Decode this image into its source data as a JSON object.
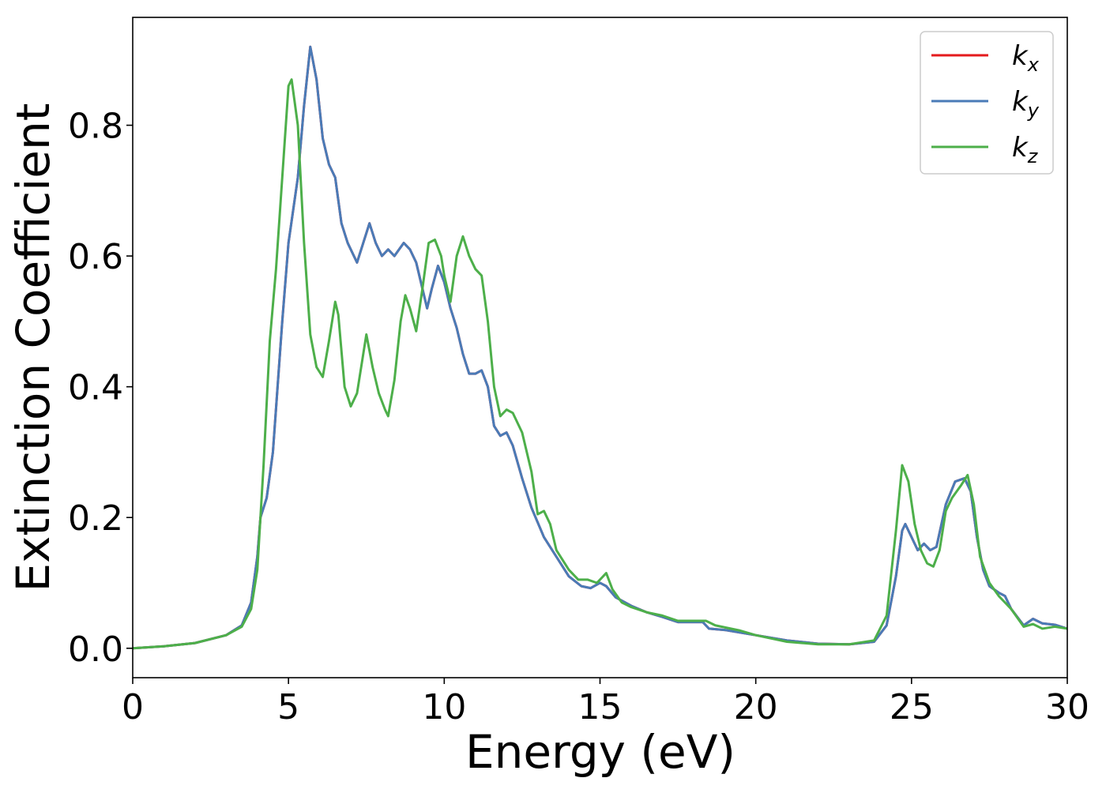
{
  "chart_data": {
    "type": "line",
    "title": "",
    "xlabel": "Energy (eV)",
    "ylabel": "Extinction Coefficient",
    "xlim": [
      0,
      30
    ],
    "ylim": [
      -0.045,
      0.965
    ],
    "xticks": [
      0,
      5,
      10,
      15,
      20,
      25,
      30
    ],
    "xtick_labels": [
      "0",
      "5",
      "10",
      "15",
      "20",
      "25",
      "30"
    ],
    "yticks": [
      0.0,
      0.2,
      0.4,
      0.6,
      0.8
    ],
    "ytick_labels": [
      "0.0",
      "0.2",
      "0.4",
      "0.6",
      "0.8"
    ],
    "grid": false,
    "legend_position": "top-right",
    "series": [
      {
        "name": "k_x",
        "label_main": "k",
        "label_sub": "x",
        "color": "#e41a1c",
        "points": [
          [
            0,
            0.0
          ],
          [
            1,
            0.003
          ],
          [
            2,
            0.008
          ],
          [
            3,
            0.02
          ],
          [
            3.5,
            0.035
          ],
          [
            3.8,
            0.07
          ],
          [
            4.0,
            0.14
          ],
          [
            4.1,
            0.2
          ],
          [
            4.3,
            0.23
          ],
          [
            4.5,
            0.3
          ],
          [
            4.8,
            0.5
          ],
          [
            5.0,
            0.62
          ],
          [
            5.3,
            0.72
          ],
          [
            5.5,
            0.83
          ],
          [
            5.7,
            0.92
          ],
          [
            5.9,
            0.87
          ],
          [
            6.1,
            0.78
          ],
          [
            6.3,
            0.74
          ],
          [
            6.5,
            0.72
          ],
          [
            6.7,
            0.65
          ],
          [
            6.9,
            0.62
          ],
          [
            7.1,
            0.6
          ],
          [
            7.2,
            0.59
          ],
          [
            7.4,
            0.62
          ],
          [
            7.6,
            0.65
          ],
          [
            7.8,
            0.62
          ],
          [
            8.0,
            0.6
          ],
          [
            8.2,
            0.61
          ],
          [
            8.4,
            0.6
          ],
          [
            8.7,
            0.62
          ],
          [
            8.9,
            0.61
          ],
          [
            9.1,
            0.59
          ],
          [
            9.3,
            0.55
          ],
          [
            9.45,
            0.52
          ],
          [
            9.6,
            0.55
          ],
          [
            9.8,
            0.585
          ],
          [
            10.0,
            0.56
          ],
          [
            10.2,
            0.52
          ],
          [
            10.4,
            0.49
          ],
          [
            10.6,
            0.45
          ],
          [
            10.8,
            0.42
          ],
          [
            11.0,
            0.42
          ],
          [
            11.2,
            0.425
          ],
          [
            11.4,
            0.4
          ],
          [
            11.6,
            0.34
          ],
          [
            11.8,
            0.325
          ],
          [
            12.0,
            0.33
          ],
          [
            12.2,
            0.31
          ],
          [
            12.5,
            0.26
          ],
          [
            12.8,
            0.215
          ],
          [
            13.2,
            0.17
          ],
          [
            13.6,
            0.14
          ],
          [
            14.0,
            0.11
          ],
          [
            14.4,
            0.095
          ],
          [
            14.7,
            0.092
          ],
          [
            15.0,
            0.1
          ],
          [
            15.2,
            0.095
          ],
          [
            15.5,
            0.078
          ],
          [
            16.0,
            0.065
          ],
          [
            16.5,
            0.055
          ],
          [
            17.0,
            0.048
          ],
          [
            17.5,
            0.04
          ],
          [
            18.0,
            0.04
          ],
          [
            18.3,
            0.04
          ],
          [
            18.5,
            0.03
          ],
          [
            19.0,
            0.028
          ],
          [
            20.0,
            0.02
          ],
          [
            21.0,
            0.012
          ],
          [
            22.0,
            0.007
          ],
          [
            23.0,
            0.006
          ],
          [
            23.8,
            0.01
          ],
          [
            24.2,
            0.035
          ],
          [
            24.5,
            0.11
          ],
          [
            24.7,
            0.18
          ],
          [
            24.8,
            0.19
          ],
          [
            25.0,
            0.17
          ],
          [
            25.2,
            0.15
          ],
          [
            25.4,
            0.16
          ],
          [
            25.6,
            0.15
          ],
          [
            25.8,
            0.155
          ],
          [
            26.1,
            0.22
          ],
          [
            26.4,
            0.255
          ],
          [
            26.7,
            0.26
          ],
          [
            26.9,
            0.24
          ],
          [
            27.1,
            0.17
          ],
          [
            27.3,
            0.12
          ],
          [
            27.5,
            0.095
          ],
          [
            27.8,
            0.085
          ],
          [
            28.0,
            0.08
          ],
          [
            28.2,
            0.06
          ],
          [
            28.6,
            0.035
          ],
          [
            28.9,
            0.045
          ],
          [
            29.2,
            0.038
          ],
          [
            29.6,
            0.036
          ],
          [
            30.0,
            0.03
          ]
        ]
      },
      {
        "name": "k_y",
        "label_main": "k",
        "label_sub": "y",
        "color": "#4a7bb7",
        "points": [
          [
            0,
            0.0
          ],
          [
            1,
            0.003
          ],
          [
            2,
            0.008
          ],
          [
            3,
            0.02
          ],
          [
            3.5,
            0.035
          ],
          [
            3.8,
            0.07
          ],
          [
            4.0,
            0.14
          ],
          [
            4.1,
            0.2
          ],
          [
            4.3,
            0.23
          ],
          [
            4.5,
            0.3
          ],
          [
            4.8,
            0.5
          ],
          [
            5.0,
            0.62
          ],
          [
            5.3,
            0.72
          ],
          [
            5.5,
            0.83
          ],
          [
            5.7,
            0.92
          ],
          [
            5.9,
            0.87
          ],
          [
            6.1,
            0.78
          ],
          [
            6.3,
            0.74
          ],
          [
            6.5,
            0.72
          ],
          [
            6.7,
            0.65
          ],
          [
            6.9,
            0.62
          ],
          [
            7.1,
            0.6
          ],
          [
            7.2,
            0.59
          ],
          [
            7.4,
            0.62
          ],
          [
            7.6,
            0.65
          ],
          [
            7.8,
            0.62
          ],
          [
            8.0,
            0.6
          ],
          [
            8.2,
            0.61
          ],
          [
            8.4,
            0.6
          ],
          [
            8.7,
            0.62
          ],
          [
            8.9,
            0.61
          ],
          [
            9.1,
            0.59
          ],
          [
            9.3,
            0.55
          ],
          [
            9.45,
            0.52
          ],
          [
            9.6,
            0.55
          ],
          [
            9.8,
            0.585
          ],
          [
            10.0,
            0.56
          ],
          [
            10.2,
            0.52
          ],
          [
            10.4,
            0.49
          ],
          [
            10.6,
            0.45
          ],
          [
            10.8,
            0.42
          ],
          [
            11.0,
            0.42
          ],
          [
            11.2,
            0.425
          ],
          [
            11.4,
            0.4
          ],
          [
            11.6,
            0.34
          ],
          [
            11.8,
            0.325
          ],
          [
            12.0,
            0.33
          ],
          [
            12.2,
            0.31
          ],
          [
            12.5,
            0.26
          ],
          [
            12.8,
            0.215
          ],
          [
            13.2,
            0.17
          ],
          [
            13.6,
            0.14
          ],
          [
            14.0,
            0.11
          ],
          [
            14.4,
            0.095
          ],
          [
            14.7,
            0.092
          ],
          [
            15.0,
            0.1
          ],
          [
            15.2,
            0.095
          ],
          [
            15.5,
            0.078
          ],
          [
            16.0,
            0.065
          ],
          [
            16.5,
            0.055
          ],
          [
            17.0,
            0.048
          ],
          [
            17.5,
            0.04
          ],
          [
            18.0,
            0.04
          ],
          [
            18.3,
            0.04
          ],
          [
            18.5,
            0.03
          ],
          [
            19.0,
            0.028
          ],
          [
            20.0,
            0.02
          ],
          [
            21.0,
            0.012
          ],
          [
            22.0,
            0.007
          ],
          [
            23.0,
            0.006
          ],
          [
            23.8,
            0.01
          ],
          [
            24.2,
            0.035
          ],
          [
            24.5,
            0.11
          ],
          [
            24.7,
            0.18
          ],
          [
            24.8,
            0.19
          ],
          [
            25.0,
            0.17
          ],
          [
            25.2,
            0.15
          ],
          [
            25.4,
            0.16
          ],
          [
            25.6,
            0.15
          ],
          [
            25.8,
            0.155
          ],
          [
            26.1,
            0.22
          ],
          [
            26.4,
            0.255
          ],
          [
            26.7,
            0.26
          ],
          [
            26.9,
            0.24
          ],
          [
            27.1,
            0.17
          ],
          [
            27.3,
            0.12
          ],
          [
            27.5,
            0.095
          ],
          [
            27.8,
            0.085
          ],
          [
            28.0,
            0.08
          ],
          [
            28.2,
            0.06
          ],
          [
            28.6,
            0.035
          ],
          [
            28.9,
            0.045
          ],
          [
            29.2,
            0.038
          ],
          [
            29.6,
            0.036
          ],
          [
            30.0,
            0.03
          ]
        ]
      },
      {
        "name": "k_z",
        "label_main": "k",
        "label_sub": "z",
        "color": "#4daf4a",
        "points": [
          [
            0,
            0.0
          ],
          [
            1,
            0.003
          ],
          [
            2,
            0.008
          ],
          [
            3,
            0.02
          ],
          [
            3.5,
            0.033
          ],
          [
            3.8,
            0.06
          ],
          [
            4.0,
            0.12
          ],
          [
            4.2,
            0.28
          ],
          [
            4.4,
            0.47
          ],
          [
            4.6,
            0.58
          ],
          [
            4.8,
            0.72
          ],
          [
            5.0,
            0.86
          ],
          [
            5.1,
            0.87
          ],
          [
            5.3,
            0.8
          ],
          [
            5.5,
            0.62
          ],
          [
            5.7,
            0.48
          ],
          [
            5.9,
            0.43
          ],
          [
            6.1,
            0.415
          ],
          [
            6.3,
            0.47
          ],
          [
            6.5,
            0.53
          ],
          [
            6.6,
            0.51
          ],
          [
            6.8,
            0.4
          ],
          [
            7.0,
            0.37
          ],
          [
            7.2,
            0.39
          ],
          [
            7.4,
            0.45
          ],
          [
            7.5,
            0.48
          ],
          [
            7.7,
            0.43
          ],
          [
            7.9,
            0.39
          ],
          [
            8.1,
            0.365
          ],
          [
            8.2,
            0.355
          ],
          [
            8.4,
            0.41
          ],
          [
            8.6,
            0.5
          ],
          [
            8.75,
            0.54
          ],
          [
            8.9,
            0.52
          ],
          [
            9.1,
            0.485
          ],
          [
            9.3,
            0.55
          ],
          [
            9.5,
            0.62
          ],
          [
            9.7,
            0.625
          ],
          [
            9.9,
            0.6
          ],
          [
            10.0,
            0.57
          ],
          [
            10.2,
            0.53
          ],
          [
            10.4,
            0.6
          ],
          [
            10.6,
            0.63
          ],
          [
            10.8,
            0.6
          ],
          [
            11.0,
            0.58
          ],
          [
            11.2,
            0.57
          ],
          [
            11.4,
            0.5
          ],
          [
            11.6,
            0.4
          ],
          [
            11.8,
            0.355
          ],
          [
            12.0,
            0.365
          ],
          [
            12.2,
            0.36
          ],
          [
            12.5,
            0.33
          ],
          [
            12.8,
            0.27
          ],
          [
            13.0,
            0.205
          ],
          [
            13.2,
            0.21
          ],
          [
            13.4,
            0.19
          ],
          [
            13.6,
            0.15
          ],
          [
            14.0,
            0.12
          ],
          [
            14.3,
            0.105
          ],
          [
            14.6,
            0.105
          ],
          [
            14.9,
            0.1
          ],
          [
            15.2,
            0.115
          ],
          [
            15.4,
            0.09
          ],
          [
            15.7,
            0.07
          ],
          [
            16.0,
            0.063
          ],
          [
            16.5,
            0.055
          ],
          [
            17.0,
            0.05
          ],
          [
            17.5,
            0.042
          ],
          [
            18.0,
            0.042
          ],
          [
            18.4,
            0.042
          ],
          [
            18.7,
            0.035
          ],
          [
            19.0,
            0.032
          ],
          [
            19.5,
            0.027
          ],
          [
            20.0,
            0.02
          ],
          [
            21.0,
            0.01
          ],
          [
            22.0,
            0.006
          ],
          [
            23.0,
            0.006
          ],
          [
            23.8,
            0.012
          ],
          [
            24.2,
            0.05
          ],
          [
            24.5,
            0.18
          ],
          [
            24.7,
            0.28
          ],
          [
            24.9,
            0.255
          ],
          [
            25.1,
            0.19
          ],
          [
            25.3,
            0.15
          ],
          [
            25.5,
            0.13
          ],
          [
            25.7,
            0.125
          ],
          [
            25.9,
            0.15
          ],
          [
            26.1,
            0.21
          ],
          [
            26.3,
            0.23
          ],
          [
            26.6,
            0.25
          ],
          [
            26.8,
            0.265
          ],
          [
            27.0,
            0.22
          ],
          [
            27.2,
            0.14
          ],
          [
            27.5,
            0.1
          ],
          [
            27.8,
            0.08
          ],
          [
            28.2,
            0.06
          ],
          [
            28.6,
            0.033
          ],
          [
            28.9,
            0.037
          ],
          [
            29.2,
            0.03
          ],
          [
            29.6,
            0.033
          ],
          [
            30.0,
            0.03
          ]
        ]
      }
    ]
  }
}
